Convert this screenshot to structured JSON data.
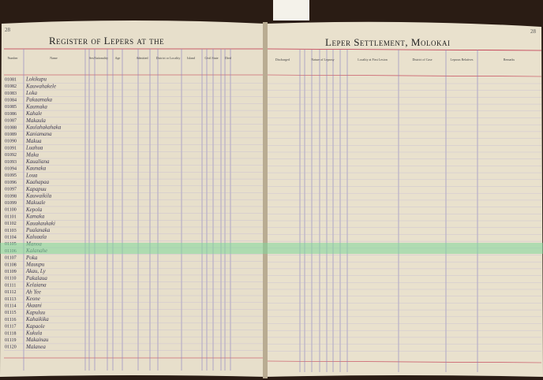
{
  "left_page": {
    "page_number": "28",
    "title": "Register of Lepers at the",
    "headers": [
      "Number",
      "Name",
      "Sex",
      "Nationality",
      "Age",
      "Admitted",
      "District or Locality",
      "Island",
      "Civil State",
      "Died"
    ]
  },
  "right_page": {
    "page_number": "28",
    "title": "Leper Settlement, Molokai",
    "headers": [
      "Discharged",
      "Nature of Leprosy",
      "Locality at First Lesion",
      "District of Case",
      "Leprous Relatives",
      "Remarks"
    ]
  },
  "rows": [
    {
      "number": "01081",
      "name": "Lokikupu"
    },
    {
      "number": "01082",
      "name": "Kauwahakele"
    },
    {
      "number": "01083",
      "name": "Loka"
    },
    {
      "number": "01084",
      "name": "Pakaamaka"
    },
    {
      "number": "01085",
      "name": "Kaumaka"
    },
    {
      "number": "01086",
      "name": "Kahale"
    },
    {
      "number": "01087",
      "name": "Makaula"
    },
    {
      "number": "01088",
      "name": "Kaulahakahaka"
    },
    {
      "number": "01089",
      "name": "Kaniamana"
    },
    {
      "number": "01090",
      "name": "Makua"
    },
    {
      "number": "01091",
      "name": "Luahua"
    },
    {
      "number": "01092",
      "name": "Maka"
    },
    {
      "number": "01093",
      "name": "Kaualiana"
    },
    {
      "number": "01094",
      "name": "Kaunaka"
    },
    {
      "number": "01095",
      "name": "Loua"
    },
    {
      "number": "01096",
      "name": "Kaahapaa"
    },
    {
      "number": "01097",
      "name": "Kapapuu"
    },
    {
      "number": "01098",
      "name": "Kauwaikila"
    },
    {
      "number": "01099",
      "name": "Makuale"
    },
    {
      "number": "01100",
      "name": "Kepola"
    },
    {
      "number": "01101",
      "name": "Kamaka"
    },
    {
      "number": "01102",
      "name": "Kauakaukaki"
    },
    {
      "number": "01103",
      "name": "Pualanaka"
    },
    {
      "number": "01104",
      "name": "Kaluaala"
    },
    {
      "number": "01105",
      "name": "Manoa"
    },
    {
      "number": "01106",
      "name": "Kalanahe"
    },
    {
      "number": "01107",
      "name": "Poka"
    },
    {
      "number": "01108",
      "name": "Mauupu"
    },
    {
      "number": "01109",
      "name": "Akau, Ly"
    },
    {
      "number": "01110",
      "name": "Pakalaua"
    },
    {
      "number": "01111",
      "name": "Kelaiana"
    },
    {
      "number": "01112",
      "name": "Ah Yee"
    },
    {
      "number": "01113",
      "name": "Keone"
    },
    {
      "number": "01114",
      "name": "Akaani"
    },
    {
      "number": "01115",
      "name": "Kapuluu"
    },
    {
      "number": "01116",
      "name": "Kahaikika"
    },
    {
      "number": "01117",
      "name": "Kapaole"
    },
    {
      "number": "01118",
      "name": "Kukula"
    },
    {
      "number": "01119",
      "name": "Makainau"
    },
    {
      "number": "01120",
      "name": "Malanea"
    }
  ]
}
